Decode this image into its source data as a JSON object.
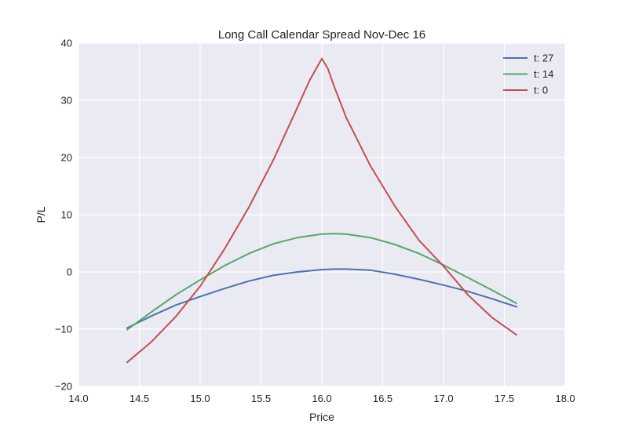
{
  "chart_data": {
    "type": "line",
    "title": "Long Call Calendar Spread Nov-Dec 16",
    "xlabel": "Price",
    "ylabel": "P/L",
    "xlim": [
      14.0,
      18.0
    ],
    "ylim": [
      -20,
      40
    ],
    "xticks": [
      "14.0",
      "14.5",
      "15.0",
      "15.5",
      "16.0",
      "16.5",
      "17.0",
      "17.5",
      "18.0"
    ],
    "yticks": [
      "−20",
      "−10",
      "0",
      "10",
      "20",
      "30",
      "40"
    ],
    "grid": true,
    "legend_position": "top-right",
    "series": [
      {
        "name": "t: 27",
        "color": "#4c72b0",
        "x": [
          14.4,
          14.6,
          14.8,
          15.0,
          15.2,
          15.4,
          15.6,
          15.8,
          16.0,
          16.1,
          16.2,
          16.4,
          16.6,
          16.8,
          17.0,
          17.2,
          17.4,
          17.6
        ],
        "y": [
          -9.8,
          -7.7,
          -5.8,
          -4.3,
          -2.9,
          -1.6,
          -0.6,
          0.0,
          0.4,
          0.5,
          0.5,
          0.3,
          -0.4,
          -1.3,
          -2.3,
          -3.4,
          -4.7,
          -6.1
        ]
      },
      {
        "name": "t: 14",
        "color": "#55a868",
        "x": [
          14.4,
          14.6,
          14.8,
          15.0,
          15.2,
          15.4,
          15.6,
          15.8,
          16.0,
          16.1,
          16.2,
          16.4,
          16.6,
          16.8,
          17.0,
          17.2,
          17.4,
          17.6
        ],
        "y": [
          -10.1,
          -7.0,
          -4.0,
          -1.4,
          1.1,
          3.2,
          4.9,
          6.0,
          6.6,
          6.7,
          6.6,
          6.0,
          4.8,
          3.2,
          1.2,
          -1.0,
          -3.2,
          -5.5
        ]
      },
      {
        "name": "t: 0",
        "color": "#c44e52",
        "x": [
          14.4,
          14.6,
          14.8,
          15.0,
          15.2,
          15.4,
          15.6,
          15.8,
          15.9,
          16.0,
          16.05,
          16.1,
          16.2,
          16.4,
          16.6,
          16.8,
          17.0,
          17.2,
          17.4,
          17.6
        ],
        "y": [
          -15.8,
          -12.2,
          -7.8,
          -2.5,
          4.0,
          11.3,
          19.5,
          28.8,
          33.5,
          37.3,
          35.5,
          32.5,
          27.0,
          18.5,
          11.5,
          5.5,
          1.0,
          -4.0,
          -8.0,
          -11.0
        ]
      }
    ]
  }
}
